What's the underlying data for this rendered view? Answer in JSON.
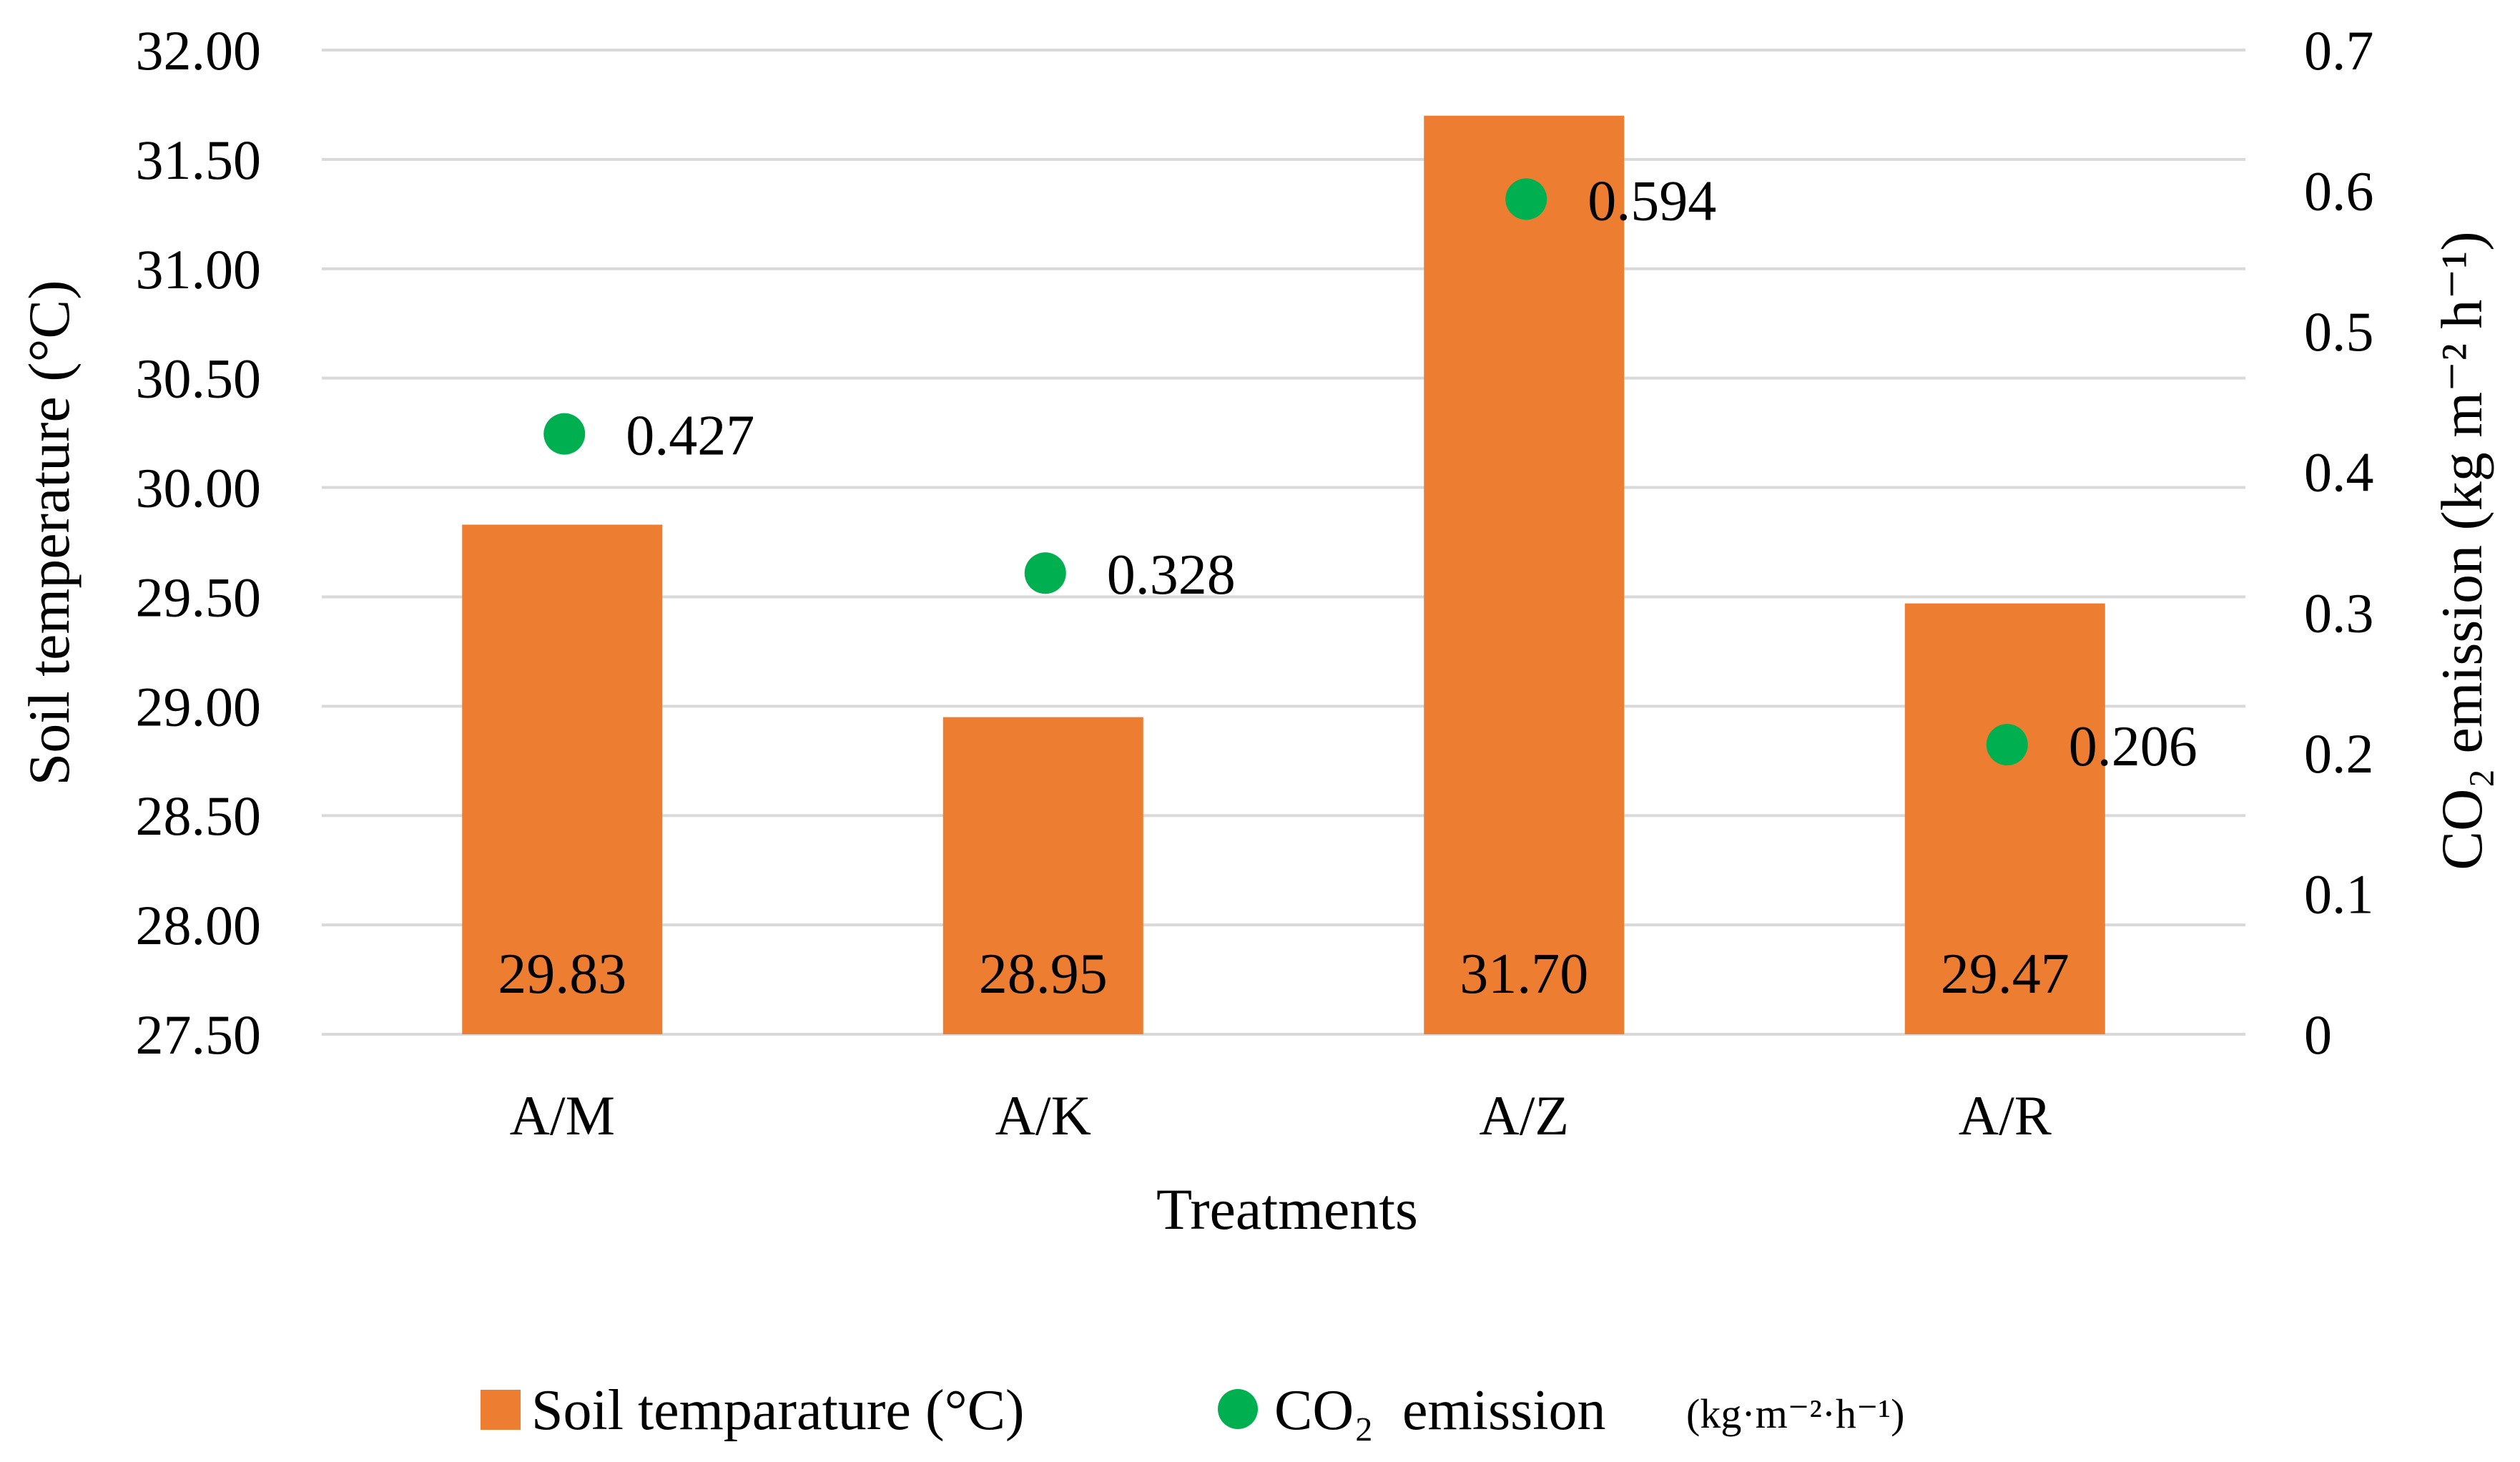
{
  "chart_data": {
    "type": "bar",
    "categories": [
      "A/M",
      "A/K",
      "A/Z",
      "A/R"
    ],
    "series": [
      {
        "name": "Soil temparature (°C)",
        "kind": "bar",
        "axis": "left",
        "color": "#ED7D31",
        "values": [
          29.83,
          28.95,
          31.7,
          29.47
        ],
        "labels": [
          "29.83",
          "28.95",
          "31.70",
          "29.47"
        ]
      },
      {
        "name": "CO₂ emission",
        "kind": "scatter",
        "axis": "right",
        "color": "#00B050",
        "values": [
          0.427,
          0.328,
          0.594,
          0.206
        ],
        "labels": [
          "0.427",
          "0.328",
          "0.594",
          "0.206"
        ]
      }
    ],
    "xlabel": "Treatments",
    "ylabel": "Soil temperature (°C)",
    "y2label": "CO₂ emission (kg m⁻² h⁻¹)",
    "ylim": [
      27.5,
      32.0
    ],
    "y2lim": [
      0,
      0.7
    ],
    "yticks": [
      "27.50",
      "28.00",
      "28.50",
      "29.00",
      "29.50",
      "30.00",
      "30.50",
      "31.00",
      "31.50",
      "32.00"
    ],
    "y2ticks": [
      "0",
      "0.1",
      "0.2",
      "0.3",
      "0.4",
      "0.5",
      "0.6",
      "0.7"
    ],
    "grid": true,
    "legend_position": "bottom",
    "legend": {
      "bar_label": "Soil temparature (°C)",
      "dot_label": "CO₂  emission",
      "dot_unit": "(kg·m⁻²·h⁻¹)"
    },
    "gridline_color": "#D9D9D9"
  }
}
